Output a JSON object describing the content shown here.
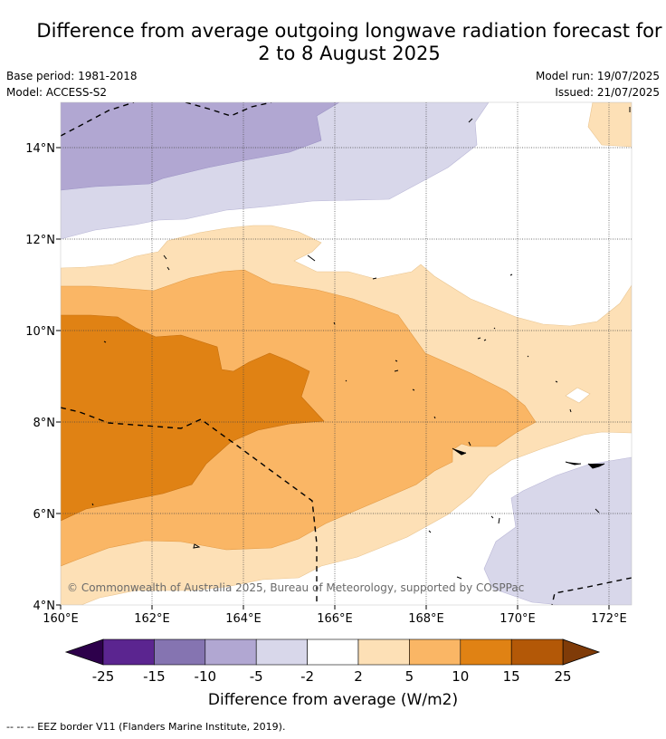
{
  "title": {
    "line1": "Difference from average outgoing longwave radiation forecast for",
    "line2": "2 to 8 August 2025"
  },
  "meta": {
    "base_period": "Base period: 1981-2018",
    "model": "Model: ACCESS-S2",
    "model_run": "Model run: 19/07/2025",
    "issued": "Issued: 21/07/2025"
  },
  "map": {
    "lon_labels": [
      "160°E",
      "162°E",
      "164°E",
      "166°E",
      "168°E",
      "170°E",
      "172°E"
    ],
    "lat_labels": [
      "14°N",
      "12°N",
      "10°N",
      "8°N",
      "6°N",
      "4°N"
    ],
    "copyright": "© Commonwealth of Australia 2025, Bureau of Meteorology, supported by COSPPac"
  },
  "colorbar": {
    "ticks": [
      "-25",
      "-15",
      "-10",
      "-5",
      "-2",
      "2",
      "5",
      "10",
      "15",
      "25"
    ],
    "colors": [
      "#5b2590",
      "#8574b1",
      "#b1a7d2",
      "#d8d7ea",
      "#ffffff",
      "#fde0b6",
      "#fab665",
      "#e08214",
      "#b35807"
    ],
    "under_color": "#2d004b",
    "over_color": "#7f3b08",
    "label": "Difference from average (W/m2)"
  },
  "footer": {
    "legend_line": "--  --  -- EEZ border V11 (Flanders Marine Institute, 2019)."
  }
}
